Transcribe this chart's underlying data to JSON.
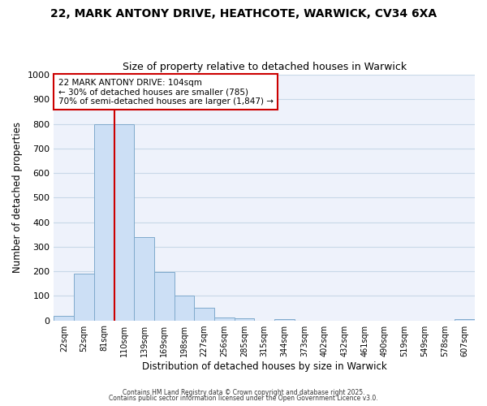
{
  "title1": "22, MARK ANTONY DRIVE, HEATHCOTE, WARWICK, CV34 6XA",
  "title2": "Size of property relative to detached houses in Warwick",
  "xlabel": "Distribution of detached houses by size in Warwick",
  "ylabel": "Number of detached properties",
  "bar_labels": [
    "22sqm",
    "52sqm",
    "81sqm",
    "110sqm",
    "139sqm",
    "169sqm",
    "198sqm",
    "227sqm",
    "256sqm",
    "285sqm",
    "315sqm",
    "344sqm",
    "373sqm",
    "402sqm",
    "432sqm",
    "461sqm",
    "490sqm",
    "519sqm",
    "549sqm",
    "578sqm",
    "607sqm"
  ],
  "bar_values": [
    18,
    190,
    800,
    800,
    340,
    197,
    100,
    50,
    13,
    10,
    0,
    5,
    0,
    0,
    0,
    0,
    0,
    0,
    0,
    0,
    5
  ],
  "bar_color": "#ccdff5",
  "bar_edgecolor": "#7faacc",
  "ylim": [
    0,
    1000
  ],
  "yticks": [
    0,
    100,
    200,
    300,
    400,
    500,
    600,
    700,
    800,
    900,
    1000
  ],
  "grid_color": "#c8d8e8",
  "bg_color": "#eef2fb",
  "vline_x": 2.5,
  "vline_color": "#cc0000",
  "annotation_line1": "22 MARK ANTONY DRIVE: 104sqm",
  "annotation_line2": "← 30% of detached houses are smaller (785)",
  "annotation_line3": "70% of semi-detached houses are larger (1,847) →",
  "annotation_box_color": "#cc0000",
  "footer1": "Contains HM Land Registry data © Crown copyright and database right 2025.",
  "footer2": "Contains public sector information licensed under the Open Government Licence v3.0."
}
